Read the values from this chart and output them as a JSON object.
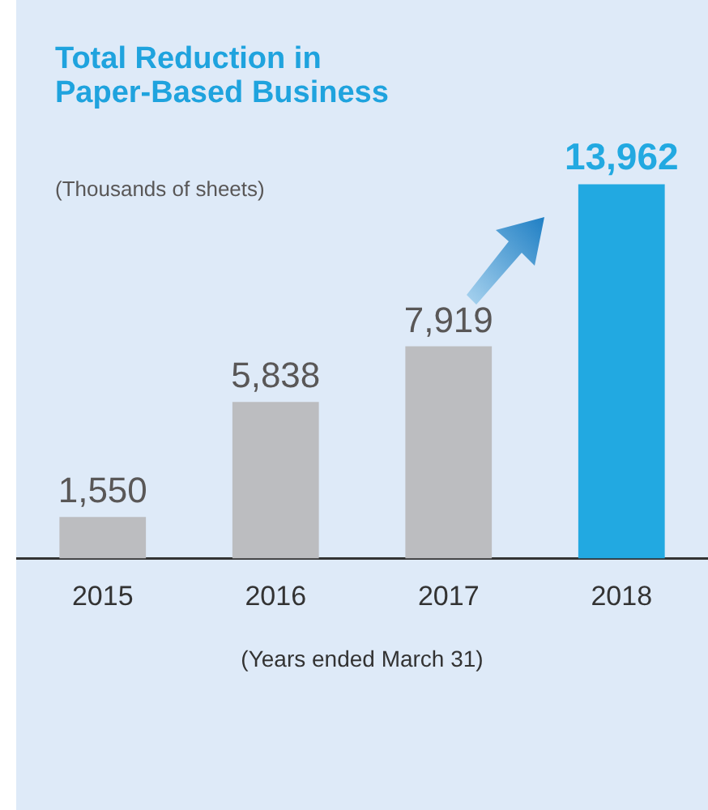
{
  "chart_data": {
    "type": "bar",
    "title": "Total Reduction in Paper-Based Business",
    "subtitle": "(Thousands of sheets)",
    "xlabel": "(Years ended March 31)",
    "categories": [
      "2015",
      "2016",
      "2017",
      "2018"
    ],
    "values": [
      1550,
      5838,
      7919,
      13962
    ],
    "colors": [
      "#bcbdc0",
      "#bcbdc0",
      "#bcbdc0",
      "#22a9e1"
    ],
    "value_labels": [
      "1,550",
      "5,838",
      "7,919",
      "13,962"
    ],
    "grid": false,
    "legend": false
  }
}
